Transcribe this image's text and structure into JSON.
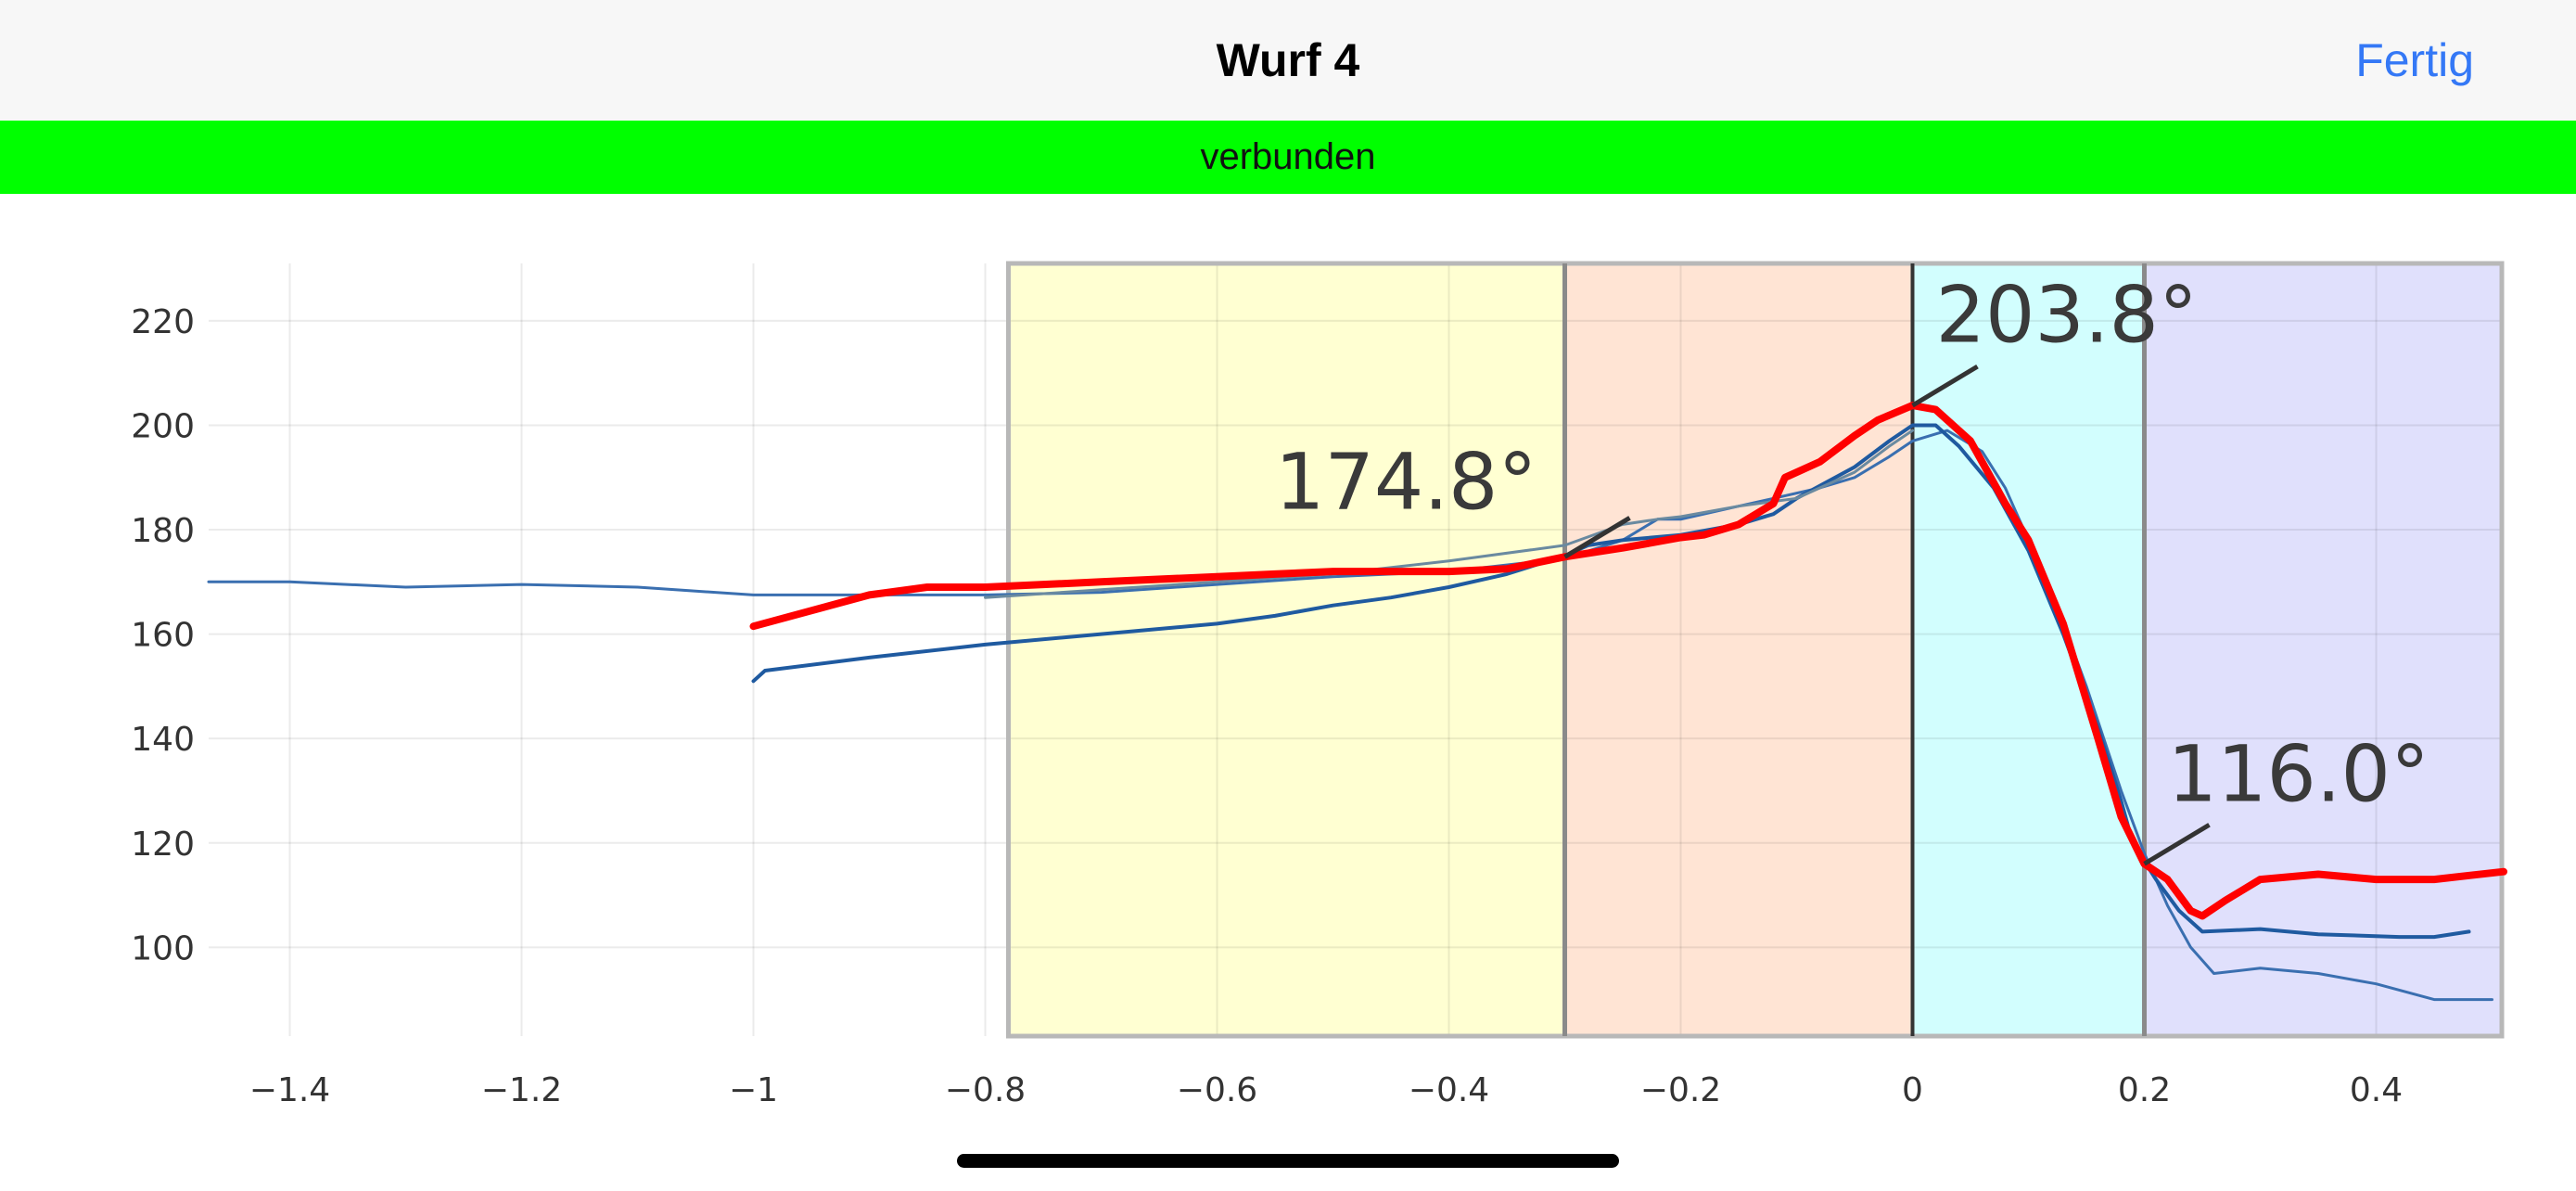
{
  "header": {
    "title": "Wurf 4",
    "done_label": "Fertig"
  },
  "status": {
    "text": "verbunden",
    "color": "#00ff00"
  },
  "chart_data": {
    "type": "line",
    "xlim": [
      -1.47,
      0.51
    ],
    "ylim": [
      83,
      231
    ],
    "grid": true,
    "x_ticks": [
      -1.4,
      -1.2,
      -1,
      -0.8,
      -0.6,
      -0.4,
      -0.2,
      0,
      0.2,
      0.4
    ],
    "x_tick_labels": [
      "−1.4",
      "−1.2",
      "−1",
      "−0.8",
      "−0.6",
      "−0.4",
      "−0.2",
      "0",
      "0.2",
      "0.4"
    ],
    "y_ticks": [
      100,
      120,
      140,
      160,
      180,
      200,
      220
    ],
    "y_tick_labels": [
      "100",
      "120",
      "140",
      "160",
      "180",
      "200",
      "220"
    ],
    "regions": [
      {
        "x0": -0.78,
        "x1": -0.3,
        "color": "#ffffd2"
      },
      {
        "x0": -0.3,
        "x1": 0.0,
        "color": "#ffe4d4"
      },
      {
        "x0": 0.0,
        "x1": 0.2,
        "color": "#d2fefe"
      },
      {
        "x0": 0.2,
        "x1": 0.51,
        "color": "#e0e0fc"
      }
    ],
    "series": [
      {
        "color": "#3a6fb0",
        "width": 3,
        "points": [
          [
            -1.47,
            170
          ],
          [
            -1.4,
            170
          ],
          [
            -1.3,
            169
          ],
          [
            -1.2,
            169.5
          ],
          [
            -1.1,
            169
          ],
          [
            -1.0,
            167.5
          ],
          [
            -0.9,
            167.5
          ],
          [
            -0.8,
            167.5
          ],
          [
            -0.7,
            168
          ],
          [
            -0.6,
            169.5
          ],
          [
            -0.5,
            171
          ],
          [
            -0.4,
            172
          ],
          [
            -0.3,
            174.5
          ],
          [
            -0.25,
            178
          ],
          [
            -0.22,
            182
          ],
          [
            -0.2,
            182
          ],
          [
            -0.18,
            183
          ],
          [
            -0.15,
            184.5
          ],
          [
            -0.12,
            186
          ],
          [
            -0.08,
            188
          ],
          [
            -0.05,
            190
          ],
          [
            -0.02,
            194
          ],
          [
            0.0,
            197
          ],
          [
            0.03,
            199
          ],
          [
            0.06,
            195
          ],
          [
            0.08,
            188
          ],
          [
            0.1,
            178
          ],
          [
            0.12,
            168
          ],
          [
            0.15,
            150
          ],
          [
            0.18,
            130
          ],
          [
            0.2,
            118
          ],
          [
            0.22,
            108
          ],
          [
            0.24,
            100
          ],
          [
            0.26,
            95
          ],
          [
            0.3,
            96
          ],
          [
            0.35,
            95
          ],
          [
            0.4,
            93
          ],
          [
            0.45,
            90
          ],
          [
            0.5,
            90
          ]
        ]
      },
      {
        "color": "#1f5aa0",
        "width": 4,
        "points": [
          [
            -1.0,
            151
          ],
          [
            -0.99,
            153
          ],
          [
            -0.9,
            155.5
          ],
          [
            -0.8,
            158
          ],
          [
            -0.7,
            160
          ],
          [
            -0.6,
            162
          ],
          [
            -0.55,
            163.5
          ],
          [
            -0.5,
            165.5
          ],
          [
            -0.45,
            167
          ],
          [
            -0.4,
            169
          ],
          [
            -0.35,
            171.5
          ],
          [
            -0.3,
            175
          ],
          [
            -0.28,
            177
          ],
          [
            -0.25,
            178
          ],
          [
            -0.2,
            179
          ],
          [
            -0.15,
            181
          ],
          [
            -0.12,
            183
          ],
          [
            -0.1,
            186
          ],
          [
            -0.05,
            192
          ],
          [
            -0.02,
            197
          ],
          [
            0.0,
            200
          ],
          [
            0.02,
            200
          ],
          [
            0.04,
            196
          ],
          [
            0.07,
            188
          ],
          [
            0.1,
            176
          ],
          [
            0.13,
            160
          ],
          [
            0.16,
            142
          ],
          [
            0.18,
            128
          ],
          [
            0.19,
            120
          ],
          [
            0.21,
            113
          ],
          [
            0.23,
            107
          ],
          [
            0.25,
            103
          ],
          [
            0.3,
            103.5
          ],
          [
            0.35,
            102.5
          ],
          [
            0.42,
            102
          ],
          [
            0.45,
            102
          ],
          [
            0.48,
            103
          ]
        ]
      },
      {
        "color": "#6a8aa0",
        "width": 3,
        "points": [
          [
            -0.8,
            167
          ],
          [
            -0.7,
            168.5
          ],
          [
            -0.6,
            170
          ],
          [
            -0.5,
            171.5
          ],
          [
            -0.4,
            174
          ],
          [
            -0.3,
            177
          ],
          [
            -0.25,
            181
          ],
          [
            -0.22,
            182
          ],
          [
            -0.2,
            182.5
          ],
          [
            -0.15,
            184.5
          ],
          [
            -0.1,
            186
          ],
          [
            -0.05,
            191
          ],
          [
            -0.02,
            196
          ],
          [
            0.0,
            199
          ]
        ]
      },
      {
        "color": "#ff0000",
        "width": 8,
        "points": [
          [
            -1.0,
            161.5
          ],
          [
            -0.9,
            167.5
          ],
          [
            -0.85,
            169
          ],
          [
            -0.8,
            169
          ],
          [
            -0.7,
            170
          ],
          [
            -0.6,
            171
          ],
          [
            -0.55,
            171.5
          ],
          [
            -0.5,
            172
          ],
          [
            -0.45,
            172
          ],
          [
            -0.4,
            172
          ],
          [
            -0.35,
            172.5
          ],
          [
            -0.3,
            174.8
          ],
          [
            -0.25,
            176.5
          ],
          [
            -0.2,
            178.5
          ],
          [
            -0.18,
            179
          ],
          [
            -0.15,
            181
          ],
          [
            -0.12,
            185
          ],
          [
            -0.11,
            190
          ],
          [
            -0.08,
            193
          ],
          [
            -0.05,
            198
          ],
          [
            -0.03,
            201
          ],
          [
            0.0,
            203.8
          ],
          [
            0.02,
            203
          ],
          [
            0.05,
            197
          ],
          [
            0.08,
            185
          ],
          [
            0.1,
            178
          ],
          [
            0.13,
            162
          ],
          [
            0.16,
            140
          ],
          [
            0.18,
            125
          ],
          [
            0.2,
            116
          ],
          [
            0.22,
            113
          ],
          [
            0.24,
            107
          ],
          [
            0.25,
            106
          ],
          [
            0.27,
            109
          ],
          [
            0.3,
            113
          ],
          [
            0.35,
            114
          ],
          [
            0.4,
            113
          ],
          [
            0.45,
            113
          ],
          [
            0.51,
            114.5
          ]
        ]
      }
    ],
    "annotations": [
      {
        "text": "174.8°",
        "x": -0.3,
        "y": 174.8,
        "label_x": -0.55,
        "label_y": 184
      },
      {
        "text": "203.8°",
        "x": 0.0,
        "y": 203.8,
        "label_x": 0.02,
        "label_y": 216
      },
      {
        "text": "116.0°",
        "x": 0.2,
        "y": 116.0,
        "label_x": 0.22,
        "label_y": 128
      }
    ]
  }
}
